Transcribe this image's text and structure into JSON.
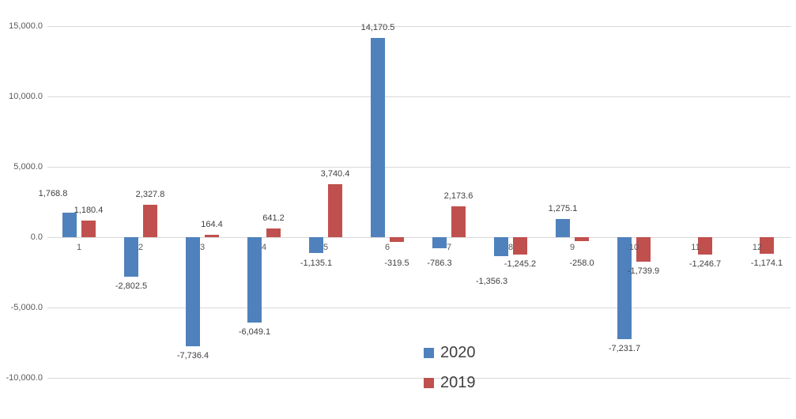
{
  "chart_data": {
    "type": "bar",
    "title": "",
    "categories": [
      "1",
      "2",
      "3",
      "4",
      "5",
      "6",
      "7",
      "8",
      "9",
      "10",
      "11",
      "12"
    ],
    "series": [
      {
        "name": "2020",
        "color": "#4F81BD",
        "values": [
          1768.8,
          -2802.5,
          -7736.4,
          -6049.1,
          -1135.1,
          14170.5,
          -786.3,
          -1356.3,
          1275.1,
          -7231.7,
          null,
          null
        ],
        "labels": [
          "1,768.8",
          "-2,802.5",
          "-7,736.4",
          "-6,049.1",
          "-1,135.1",
          "14,170.5",
          "-786.3",
          "-1,356.3",
          "1,275.1",
          "-7,231.7",
          "",
          ""
        ]
      },
      {
        "name": "2019",
        "color": "#C0504D",
        "values": [
          1180.4,
          2327.8,
          164.4,
          641.2,
          3740.4,
          -319.5,
          2173.6,
          -1245.2,
          -258.0,
          -1739.9,
          -1246.7,
          -1174.1
        ],
        "labels": [
          "1,180.4",
          "2,327.8",
          "164.4",
          "641.2",
          "3,740.4",
          "-319.5",
          "2,173.6",
          "-1,245.2",
          "-258.0",
          "-1,739.9",
          "-1,246.7",
          "-1,174.1"
        ]
      }
    ],
    "y_axis": {
      "min": -10000,
      "max": 15000,
      "interval": 5000,
      "ticks": [
        {
          "label": "15,000.0",
          "value": 15000
        },
        {
          "label": "10,000.0",
          "value": 10000
        },
        {
          "label": "5,000.0",
          "value": 5000
        },
        {
          "label": "0.0",
          "value": 0
        },
        {
          "label": "-5,000.0",
          "value": -5000
        },
        {
          "label": "-10,000.0",
          "value": -10000
        }
      ]
    },
    "legend": {
      "position": "bottom-center",
      "entries": [
        {
          "label": "2020",
          "color": "#4F81BD"
        },
        {
          "label": "2019",
          "color": "#C0504D"
        }
      ]
    },
    "grid": true,
    "colors": {
      "background": "#FFFFFF",
      "gridline": "#D9D9D9",
      "axis_text": "#595959",
      "label_text": "#404040"
    }
  }
}
